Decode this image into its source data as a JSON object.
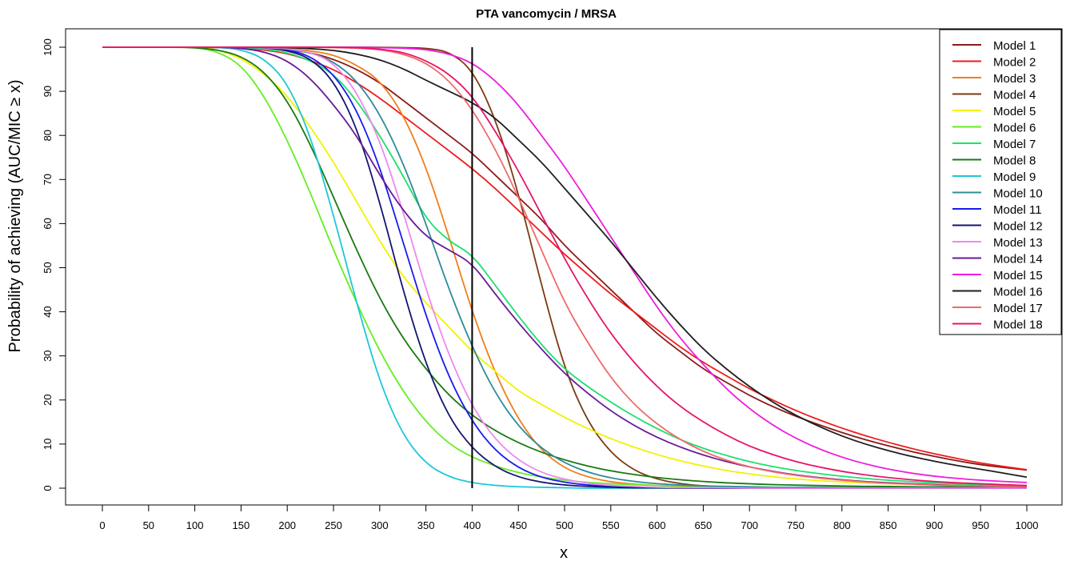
{
  "chart_data": {
    "type": "line",
    "title": "PTA vancomycin / MRSA",
    "xlabel": "x",
    "ylabel": "Probability of achieving (AUC/MIC ≥ x)",
    "xlim": [
      0,
      1000
    ],
    "ylim": [
      0,
      100
    ],
    "xticks": [
      0,
      50,
      100,
      150,
      200,
      250,
      300,
      350,
      400,
      450,
      500,
      550,
      600,
      650,
      700,
      750,
      800,
      850,
      900,
      950,
      1000
    ],
    "yticks": [
      0,
      10,
      20,
      30,
      40,
      50,
      60,
      70,
      80,
      90,
      100
    ],
    "grid": false,
    "legend_position": "top-right",
    "reference_line": {
      "x": 400
    },
    "x": [
      0,
      25,
      50,
      75,
      100,
      125,
      150,
      175,
      200,
      225,
      250,
      275,
      300,
      325,
      350,
      375,
      400,
      425,
      450,
      475,
      500,
      525,
      550,
      575,
      600,
      625,
      650,
      675,
      700,
      725,
      750,
      775,
      800,
      825,
      850,
      875,
      900,
      925,
      950,
      975,
      1000
    ],
    "series": [
      {
        "name": "Model 1",
        "color": "#8b1a1a",
        "values": [
          100,
          100,
          100,
          100,
          100,
          100,
          100,
          99.9,
          99.5,
          98.8,
          97.3,
          95,
          92,
          88,
          84,
          80,
          76,
          71,
          66,
          61,
          55,
          50,
          45,
          40,
          35,
          31,
          27,
          24,
          21,
          18.5,
          16.3,
          14.4,
          12.6,
          11,
          9.6,
          8.3,
          7.2,
          6.2,
          5.3,
          4.7,
          4.1
        ]
      },
      {
        "name": "Model 2",
        "color": "#ee1c1c",
        "values": [
          100,
          100,
          100,
          100,
          100,
          99.9,
          99.8,
          99.4,
          98.6,
          97,
          95,
          92,
          88.5,
          84.5,
          80.5,
          76.5,
          72.5,
          68,
          63,
          58,
          53,
          48.5,
          44,
          40,
          36,
          32,
          28.5,
          25.5,
          22.5,
          20,
          17.6,
          15.5,
          13.6,
          11.9,
          10.4,
          9,
          7.8,
          6.7,
          5.7,
          4.9,
          4.2
        ]
      },
      {
        "name": "Model 3",
        "color": "#f07e1a",
        "values": [
          100,
          100,
          100,
          100,
          100,
          100,
          100,
          99.9,
          99.7,
          99.2,
          98.3,
          96,
          92.5,
          85,
          73,
          57,
          40,
          26,
          15.5,
          8.5,
          4.5,
          2.5,
          1.4,
          0.9,
          0.6,
          0.4,
          0.3,
          0.25,
          0.2,
          0.2,
          0.2,
          0.2,
          0.15,
          0.15,
          0.15,
          0.15,
          0.1,
          0.1,
          0.1,
          0.1,
          0.1
        ]
      },
      {
        "name": "Model 4",
        "color": "#7a3a10",
        "values": [
          100,
          100,
          100,
          100,
          100,
          100,
          100,
          100,
          100,
          100,
          100,
          100,
          100,
          99.9,
          99.8,
          99,
          95,
          84,
          67,
          46,
          27,
          15,
          8,
          4,
          2,
          1,
          0.5,
          0.3,
          0.2,
          0.1,
          0.1,
          0.1,
          0.1,
          0,
          0,
          0,
          0,
          0,
          0,
          0,
          0
        ]
      },
      {
        "name": "Model 5",
        "color": "#f2f200",
        "values": [
          100,
          100,
          100,
          100,
          100,
          99.5,
          97.5,
          94,
          89,
          82,
          74,
          65,
          56,
          48,
          42,
          36.5,
          31,
          26.5,
          22,
          19,
          16,
          13.5,
          11.2,
          9.3,
          7.6,
          6.2,
          5,
          4,
          3.2,
          2.6,
          2.1,
          1.7,
          1.4,
          1.2,
          1,
          0.9,
          0.8,
          0.7,
          0.6,
          0.6,
          0.5
        ]
      },
      {
        "name": "Model 6",
        "color": "#66ee22",
        "values": [
          100,
          100,
          100,
          100,
          100,
          99,
          96,
          89,
          79,
          67,
          54,
          42,
          31,
          22,
          15,
          10,
          7,
          5,
          3.5,
          2.5,
          1.8,
          1.3,
          1,
          0.8,
          0.6,
          0.5,
          0.4,
          0.3,
          0.3,
          0.2,
          0.2,
          0.2,
          0.2,
          0.1,
          0.1,
          0.1,
          0.1,
          0.1,
          0.1,
          0.1,
          0.1
        ]
      },
      {
        "name": "Model 7",
        "color": "#1ee06e",
        "values": [
          100,
          100,
          100,
          100,
          100,
          100,
          99.9,
          99.6,
          98.8,
          97,
          94,
          88,
          80,
          71,
          61,
          56,
          53,
          46,
          39,
          32.5,
          27,
          23,
          19.5,
          16.3,
          13.5,
          11,
          9,
          7.4,
          6,
          4.9,
          4,
          3.3,
          2.7,
          2.2,
          1.8,
          1.5,
          1.2,
          1,
          0.8,
          0.7,
          0.6
        ]
      },
      {
        "name": "Model 8",
        "color": "#1a7a10",
        "values": [
          100,
          100,
          100,
          100,
          99.9,
          99.4,
          98,
          94.5,
          88,
          78,
          66,
          54,
          43,
          34,
          27,
          21,
          16.5,
          13,
          10.3,
          8.1,
          6.4,
          5,
          3.9,
          3.1,
          2.4,
          1.9,
          1.5,
          1.2,
          1,
          0.8,
          0.7,
          0.6,
          0.5,
          0.4,
          0.4,
          0.3,
          0.3,
          0.3,
          0.2,
          0.2,
          0.2
        ]
      },
      {
        "name": "Model 9",
        "color": "#1cc8d8",
        "values": [
          100,
          100,
          100,
          100,
          100,
          100,
          99.5,
          97.5,
          92,
          80,
          62,
          42,
          24,
          12,
          5.5,
          2.5,
          1.2,
          0.6,
          0.3,
          0.2,
          0.1,
          0,
          0,
          0,
          0,
          0,
          0,
          0,
          0,
          0,
          0,
          0,
          0,
          0,
          0,
          0,
          0,
          0,
          0,
          0,
          0
        ]
      },
      {
        "name": "Model 10",
        "color": "#2e8b9a",
        "values": [
          100,
          100,
          100,
          100,
          100,
          100,
          100,
          99.9,
          99.6,
          98.8,
          96.8,
          92.5,
          85,
          74,
          60,
          45,
          32,
          21.5,
          14,
          9,
          5.7,
          3.6,
          2.3,
          1.5,
          1,
          0.7,
          0.5,
          0.4,
          0.3,
          0.2,
          0.2,
          0.2,
          0.1,
          0.1,
          0.1,
          0.1,
          0.1,
          0.1,
          0.1,
          0.1,
          0.1
        ]
      },
      {
        "name": "Model 11",
        "color": "#1a1aee",
        "values": [
          100,
          100,
          100,
          100,
          100,
          100,
          100,
          99.9,
          99.5,
          98,
          94,
          86,
          73,
          56,
          39,
          25,
          15,
          8.5,
          4.6,
          2.4,
          1.3,
          0.7,
          0.4,
          0.2,
          0.1,
          0.1,
          0.1,
          0,
          0,
          0,
          0,
          0,
          0,
          0,
          0,
          0,
          0,
          0,
          0,
          0,
          0
        ]
      },
      {
        "name": "Model 12",
        "color": "#141470",
        "values": [
          100,
          100,
          100,
          100,
          100,
          100,
          100,
          99.9,
          99.3,
          97.5,
          92.5,
          82,
          65,
          45,
          28,
          16,
          9,
          4.8,
          2.5,
          1.3,
          0.7,
          0.4,
          0.2,
          0.1,
          0.1,
          0,
          0,
          0,
          0,
          0,
          0,
          0,
          0,
          0,
          0,
          0,
          0,
          0,
          0,
          0,
          0
        ]
      },
      {
        "name": "Model 13",
        "color": "#ee88ee",
        "values": [
          100,
          100,
          100,
          100,
          100,
          100,
          100,
          99.9,
          99.7,
          98.9,
          96.5,
          90,
          79,
          63,
          45,
          30,
          18.5,
          11,
          6.3,
          3.5,
          2,
          1.1,
          0.6,
          0.4,
          0.2,
          0.1,
          0.1,
          0.1,
          0,
          0,
          0,
          0,
          0,
          0,
          0,
          0,
          0,
          0,
          0,
          0,
          0
        ]
      },
      {
        "name": "Model 14",
        "color": "#6a1a9a",
        "values": [
          100,
          100,
          100,
          100,
          100,
          100,
          99.8,
          99,
          97,
          93,
          87,
          80,
          71,
          63,
          57,
          54,
          51,
          44,
          37.5,
          31.5,
          26,
          21.5,
          17.5,
          14.2,
          11.5,
          9.3,
          7.5,
          6,
          4.8,
          3.8,
          3,
          2.4,
          1.9,
          1.5,
          1.2,
          1,
          0.8,
          0.6,
          0.5,
          0.4,
          0.3
        ]
      },
      {
        "name": "Model 15",
        "color": "#ee1cde",
        "values": [
          100,
          100,
          100,
          100,
          100,
          100,
          100,
          100,
          100,
          100,
          100,
          100,
          99.9,
          99.8,
          99.5,
          98.5,
          96.5,
          92.5,
          87,
          80,
          73,
          65,
          57,
          49,
          41,
          34,
          28,
          22.5,
          18,
          14.3,
          11.3,
          8.9,
          7,
          5.5,
          4.3,
          3.4,
          2.7,
          2.2,
          1.8,
          1.5,
          1.3
        ]
      },
      {
        "name": "Model 16",
        "color": "#1e1e1e",
        "values": [
          100,
          100,
          100,
          100,
          100,
          100,
          100,
          100,
          99.9,
          99.7,
          99.3,
          98.5,
          97.2,
          95.2,
          92.5,
          90,
          87.5,
          84,
          79,
          74,
          68,
          62,
          56,
          49.5,
          43,
          37,
          31.5,
          27,
          23,
          19.5,
          16.5,
          14,
          11.8,
          10,
          8.5,
          7.2,
          6.1,
          5.1,
          4.3,
          3.4,
          2.5
        ]
      },
      {
        "name": "Model 17",
        "color": "#f06a6a",
        "values": [
          100,
          100,
          100,
          100,
          100,
          100,
          100,
          100,
          100,
          100,
          99.9,
          99.8,
          99.5,
          98.5,
          96.5,
          92.5,
          86,
          77,
          66,
          54,
          42,
          33,
          25,
          19,
          14.5,
          11,
          8.3,
          6.3,
          4.8,
          3.7,
          2.9,
          2.3,
          1.8,
          1.4,
          1.1,
          0.9,
          0.7,
          0.6,
          0.5,
          0.4,
          0.4
        ]
      },
      {
        "name": "Model 18",
        "color": "#e8146a",
        "values": [
          100,
          100,
          100,
          100,
          100,
          100,
          100,
          100,
          100,
          100,
          100,
          99.9,
          99.6,
          98.9,
          97,
          94,
          89,
          81,
          72,
          62,
          52,
          43,
          35,
          28.5,
          23,
          18.5,
          15,
          12,
          9.5,
          7.6,
          6,
          4.8,
          3.8,
          3,
          2.4,
          1.9,
          1.5,
          1.2,
          1,
          0.8,
          0.6
        ]
      }
    ]
  }
}
